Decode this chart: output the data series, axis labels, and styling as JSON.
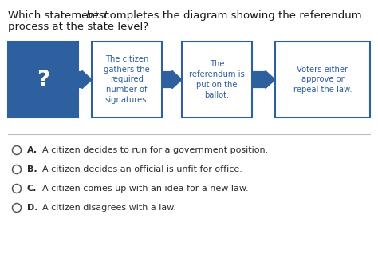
{
  "title_pre_italic": "Which statement ",
  "title_italic": "best",
  "title_post_italic": " completes the diagram showing the referendum",
  "title_line2": "process at the state level?",
  "box1_text": "?",
  "box1_facecolor": "#2e5f9f",
  "box1_edgecolor": "#2e5f9f",
  "box1_text_color": "#ffffff",
  "box2_text": "The citizen\ngathers the\nrequired\nnumber of\nsignatures.",
  "box2_facecolor": "#ffffff",
  "box2_edgecolor": "#2e5f9f",
  "box2_text_color": "#2e5f9f",
  "box3_text": "The\nreferendum is\nput on the\nballot.",
  "box3_facecolor": "#ffffff",
  "box3_edgecolor": "#2e5f9f",
  "box3_text_color": "#2e5f9f",
  "box4_text": "Voters either\napprove or\nrepeal the law.",
  "box4_facecolor": "#ffffff",
  "box4_edgecolor": "#2e5f9f",
  "box4_text_color": "#2e5f9f",
  "arrow_color": "#2e5f9f",
  "options": [
    {
      "label": "A.",
      "text": "  A citizen decides to run for a government position."
    },
    {
      "label": "B.",
      "text": "  A citizen decides an official is unfit for office."
    },
    {
      "label": "C.",
      "text": "  A citizen comes up with an idea for a new law."
    },
    {
      "label": "D.",
      "text": "  A citizen disagrees with a law."
    }
  ],
  "option_label_color": "#2a2a2a",
  "option_text_color": "#2a2a2a",
  "circle_color": "#555555",
  "bg_color": "#ffffff",
  "separator_color": "#bbbbbb",
  "font_size_title": 9.5,
  "font_size_box": 7.2,
  "font_size_options": 8.0,
  "question_mark_fontsize": 20
}
